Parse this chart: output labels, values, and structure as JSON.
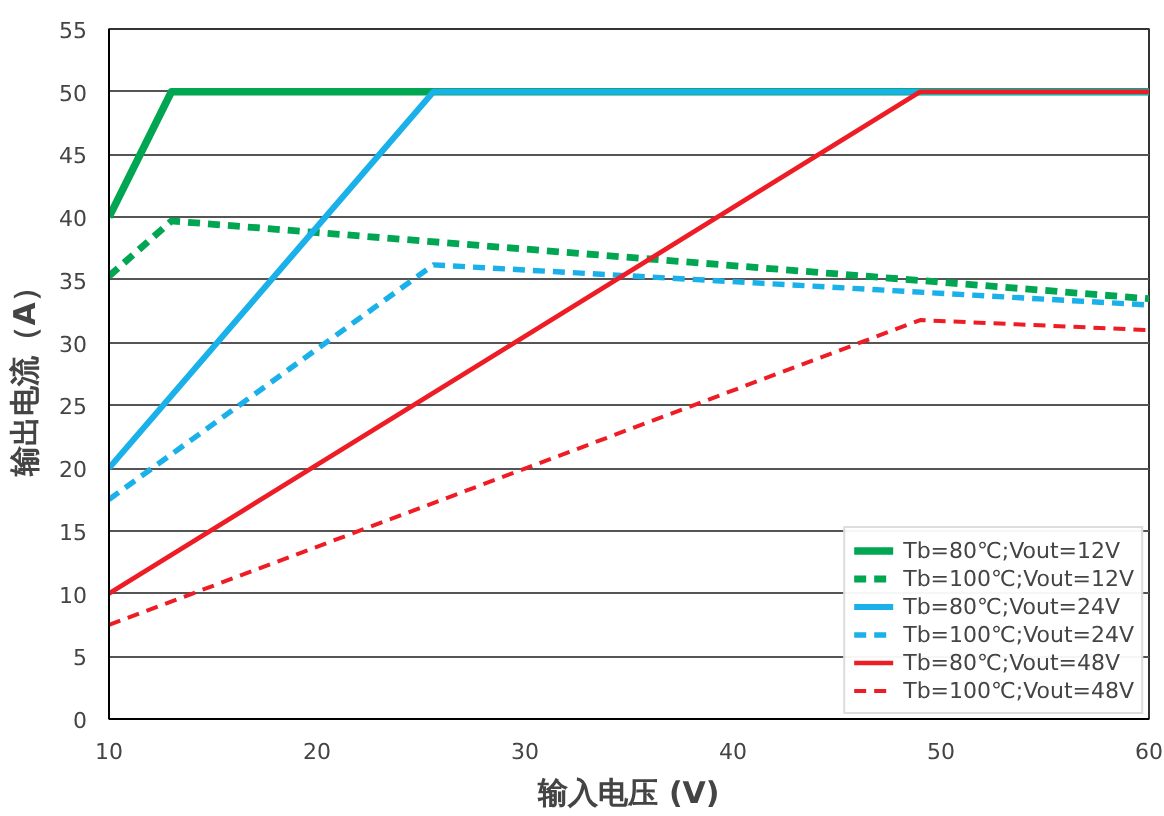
{
  "chart_data": {
    "type": "line",
    "xlabel": "输入电压 (V)",
    "ylabel": "输出电流（A）",
    "xlim": [
      10,
      60
    ],
    "ylim": [
      0,
      55
    ],
    "xticks": [
      10,
      20,
      30,
      40,
      50,
      60
    ],
    "yticks": [
      0,
      5,
      10,
      15,
      20,
      25,
      30,
      35,
      40,
      45,
      50,
      55
    ],
    "grid": "y",
    "legend": "bottom right",
    "marker": "none",
    "series": [
      {
        "name": "Tb=80℃;Vout=12V",
        "color": "#00a651",
        "line_style": "solid",
        "x": [
          10,
          13,
          60
        ],
        "values": [
          40,
          50,
          50
        ]
      },
      {
        "name": "Tb=100℃;Vout=12V",
        "color": "#00a651",
        "line_style": "dashed",
        "x": [
          10,
          13,
          60
        ],
        "values": [
          35.3,
          39.7,
          33.5
        ]
      },
      {
        "name": "Tb=80℃;Vout=24V",
        "color": "#1ab0ea",
        "line_style": "solid",
        "x": [
          10,
          25.6,
          60
        ],
        "values": [
          20,
          50,
          50
        ]
      },
      {
        "name": "Tb=100℃;Vout=24V",
        "color": "#1ab0ea",
        "line_style": "dashed",
        "x": [
          10,
          25.6,
          60
        ],
        "values": [
          17.5,
          36.2,
          33
        ]
      },
      {
        "name": "Tb=80℃;Vout=48V",
        "color": "#ee1c25",
        "line_style": "solid",
        "x": [
          10,
          49,
          60
        ],
        "values": [
          10,
          50,
          50
        ]
      },
      {
        "name": "Tb=100℃;Vout=48V",
        "color": "#ee1c25",
        "line_style": "dashed",
        "x": [
          10,
          49,
          60
        ],
        "values": [
          7.5,
          31.8,
          31
        ]
      }
    ]
  }
}
